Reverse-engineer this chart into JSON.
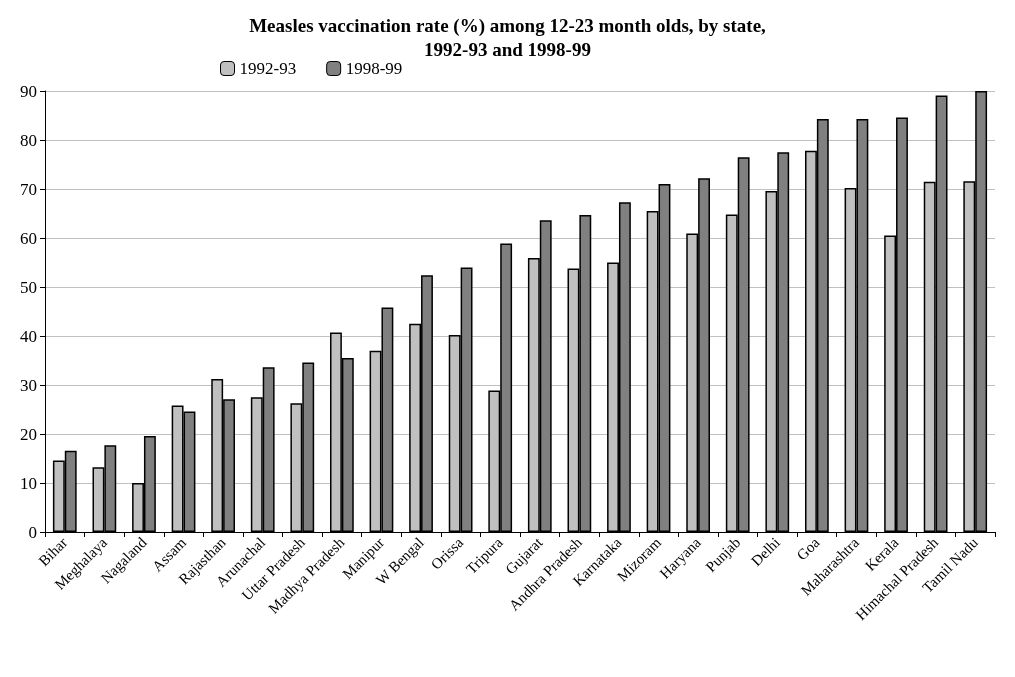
{
  "chart_data": {
    "type": "bar",
    "title": "Measles vaccination rate (%) among 12-23 month olds, by state,\n1992-93 and 1998-99",
    "categories": [
      "Bihar",
      "Meghalaya",
      "Nagaland",
      "Assam",
      "Rajasthan",
      "Arunachal",
      "Uttar Pradesh",
      "Madhya Pradesh",
      "Manipur",
      "W Bengal",
      "Orissa",
      "Tripura",
      "Gujarat",
      "Andhra Pradesh",
      "Karnataka",
      "Mizoram",
      "Haryana",
      "Punjab",
      "Delhi",
      "Goa",
      "Maharashtra",
      "Kerala",
      "Himachal Pradesh",
      "Tamil Nadu"
    ],
    "series": [
      {
        "name": "1992-93",
        "color": "#c0c0c0",
        "values": [
          14.6,
          13.2,
          10,
          25.8,
          31.2,
          27.5,
          26.3,
          40.7,
          37,
          42.5,
          40.2,
          28.9,
          55.9,
          53.8,
          55,
          65.5,
          60.9,
          64.8,
          69.6,
          77.8,
          70.2,
          60.5,
          71.5,
          71.6
        ]
      },
      {
        "name": "1998-99",
        "color": "#808080",
        "values": [
          16.6,
          17.7,
          19.6,
          24.6,
          27.1,
          33.6,
          34.6,
          35.5,
          45.8,
          52.4,
          54,
          58.9,
          63.6,
          64.7,
          67.3,
          71,
          72.2,
          76.5,
          77.5,
          84.3,
          84.3,
          84.6,
          89.1,
          90
        ]
      }
    ],
    "ylim": [
      0,
      90
    ],
    "yticks": [
      0,
      10,
      20,
      30,
      40,
      50,
      60,
      70,
      80,
      90
    ],
    "grid": "y",
    "legend": "top left"
  }
}
